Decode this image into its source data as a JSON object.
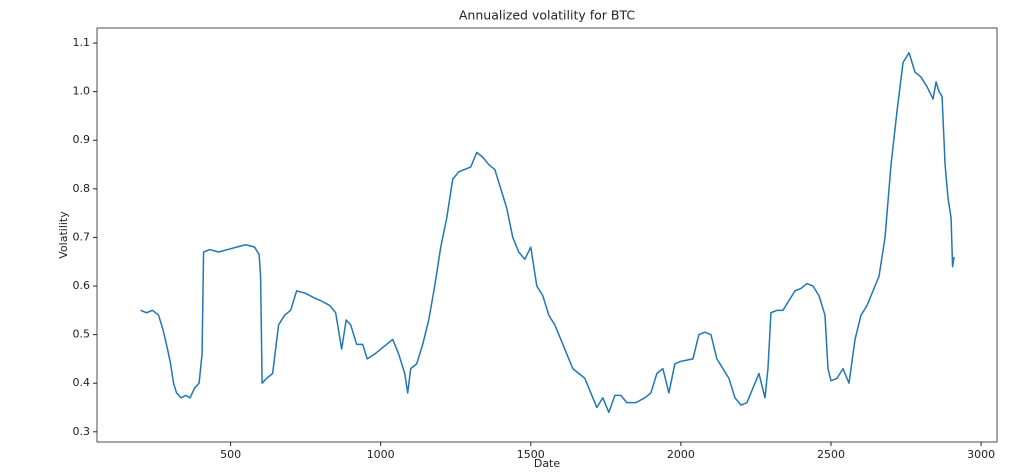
{
  "chart_data": {
    "type": "line",
    "title": "Annualized volatility for BTC",
    "x_label": "Date",
    "y_label": "Volatility",
    "x": [
      200,
      220,
      240,
      260,
      275,
      290,
      300,
      310,
      320,
      335,
      350,
      365,
      380,
      395,
      405,
      410,
      430,
      460,
      490,
      520,
      550,
      580,
      595,
      600,
      605,
      620,
      640,
      660,
      680,
      700,
      720,
      750,
      780,
      800,
      830,
      850,
      870,
      885,
      900,
      920,
      940,
      955,
      980,
      1000,
      1020,
      1040,
      1060,
      1080,
      1090,
      1100,
      1120,
      1140,
      1160,
      1180,
      1200,
      1220,
      1240,
      1260,
      1280,
      1300,
      1320,
      1340,
      1360,
      1380,
      1400,
      1420,
      1440,
      1460,
      1480,
      1500,
      1520,
      1540,
      1560,
      1580,
      1600,
      1620,
      1640,
      1660,
      1680,
      1700,
      1720,
      1740,
      1760,
      1780,
      1800,
      1820,
      1850,
      1880,
      1900,
      1920,
      1940,
      1960,
      1980,
      2000,
      2040,
      2060,
      2080,
      2100,
      2120,
      2140,
      2160,
      2180,
      2200,
      2220,
      2240,
      2260,
      2280,
      2290,
      2300,
      2320,
      2340,
      2360,
      2380,
      2400,
      2420,
      2440,
      2460,
      2480,
      2490,
      2500,
      2520,
      2540,
      2560,
      2580,
      2600,
      2620,
      2640,
      2660,
      2680,
      2700,
      2720,
      2740,
      2760,
      2780,
      2800,
      2820,
      2840,
      2850,
      2860,
      2870,
      2880,
      2890,
      2900,
      2905,
      2910
    ],
    "series": [
      {
        "name": "Volatility",
        "color": "#1f77b4",
        "values": [
          0.55,
          0.545,
          0.55,
          0.54,
          0.51,
          0.47,
          0.44,
          0.4,
          0.38,
          0.37,
          0.375,
          0.37,
          0.39,
          0.4,
          0.46,
          0.67,
          0.675,
          0.67,
          0.675,
          0.68,
          0.685,
          0.68,
          0.665,
          0.62,
          0.4,
          0.41,
          0.42,
          0.52,
          0.54,
          0.55,
          0.59,
          0.585,
          0.575,
          0.57,
          0.56,
          0.545,
          0.47,
          0.53,
          0.52,
          0.48,
          0.48,
          0.45,
          0.46,
          0.47,
          0.48,
          0.49,
          0.46,
          0.42,
          0.38,
          0.43,
          0.44,
          0.48,
          0.53,
          0.6,
          0.68,
          0.74,
          0.82,
          0.835,
          0.84,
          0.845,
          0.875,
          0.865,
          0.85,
          0.84,
          0.8,
          0.76,
          0.7,
          0.67,
          0.655,
          0.68,
          0.6,
          0.58,
          0.54,
          0.52,
          0.49,
          0.46,
          0.43,
          0.42,
          0.41,
          0.38,
          0.35,
          0.37,
          0.34,
          0.375,
          0.375,
          0.36,
          0.36,
          0.37,
          0.38,
          0.42,
          0.43,
          0.38,
          0.44,
          0.445,
          0.45,
          0.5,
          0.505,
          0.5,
          0.45,
          0.43,
          0.41,
          0.37,
          0.355,
          0.36,
          0.39,
          0.42,
          0.37,
          0.43,
          0.545,
          0.55,
          0.55,
          0.57,
          0.59,
          0.595,
          0.605,
          0.6,
          0.58,
          0.54,
          0.43,
          0.405,
          0.41,
          0.43,
          0.4,
          0.49,
          0.54,
          0.56,
          0.59,
          0.62,
          0.7,
          0.85,
          0.96,
          1.06,
          1.08,
          1.04,
          1.03,
          1.01,
          0.985,
          1.02,
          1.0,
          0.99,
          0.85,
          0.78,
          0.74,
          0.64,
          0.66
        ]
      }
    ],
    "xlim": [
      55,
      3053
    ],
    "ylim": [
      0.279,
      1.131
    ],
    "xticks": [
      500,
      1000,
      1500,
      2000,
      2500,
      3000
    ],
    "yticks": [
      0.3,
      0.4,
      0.5,
      0.6,
      0.7,
      0.8,
      0.9,
      {
        "value": 1,
        "label": "1.0"
      },
      1.1
    ]
  }
}
